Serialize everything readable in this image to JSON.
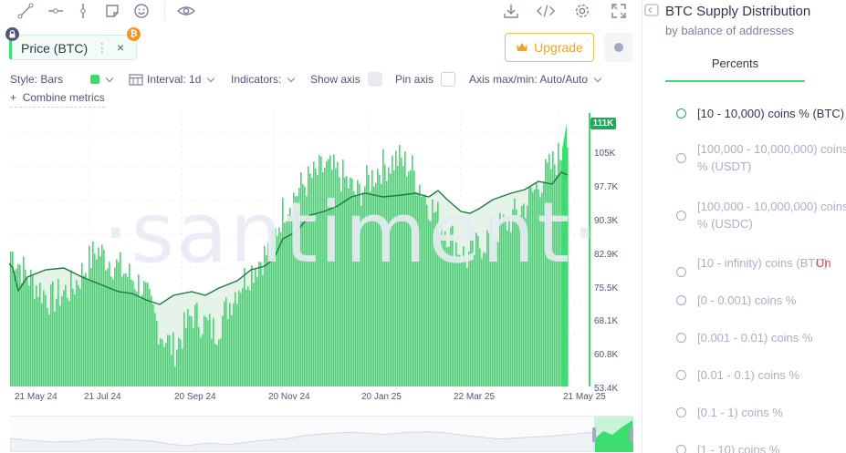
{
  "toolbar": {
    "icons": [
      "line-tool-icon",
      "ray-tool-icon",
      "vertical-line-icon",
      "note-icon",
      "emoji-icon",
      "eye-icon",
      "download-icon",
      "embed-code-icon",
      "settings-gear-icon",
      "fullscreen-icon"
    ]
  },
  "metric": {
    "label": "Price (BTC)",
    "menu": "⋮",
    "close": "×",
    "badge": "₿",
    "color": "#3bdd6e"
  },
  "upgrade": {
    "label": "Upgrade",
    "color": "#f0a424"
  },
  "settings": {
    "style": "Style: Bars",
    "interval": "Interval: 1d",
    "indicators": "Indicators:",
    "show_axis": "Show axis",
    "pin_axis": "Pin axis",
    "axis_minmax": "Axis max/min: Auto/Auto",
    "combine": "Combine metrics",
    "combine_plus": "+"
  },
  "chart_data": {
    "type": "bar",
    "watermark": "·santiment·",
    "y_ticks": [
      "111K",
      "105K",
      "97.7K",
      "90.3K",
      "82.9K",
      "75.5K",
      "68.1K",
      "60.8K",
      "53.4K"
    ],
    "x_ticks": [
      "21 May 24",
      "21 Jul 24",
      "20 Sep 24",
      "20 Nov 24",
      "20 Jan 25",
      "22 Mar 25",
      "21 May 25"
    ],
    "current_price_label": "111K",
    "series": [
      {
        "name": "Price (BTC)",
        "type": "bar",
        "color": "#3bdd6e"
      },
      {
        "name": "[10 - 10,000) coins % (BTC)",
        "type": "line",
        "color": "#1e7a3f"
      }
    ]
  },
  "sidebar": {
    "title": "BTC Supply Distribution",
    "subtitle": "by balance of addresses",
    "tab": "Percents",
    "items": [
      {
        "text": "[10 - 10,000) coins % (BTC)",
        "active": true
      },
      {
        "text": "[100,000 - 10,000,000) coins % (USDT)",
        "active": false
      },
      {
        "text": "[100,000 - 10,000,000) coins % (USDC)",
        "active": false
      },
      {
        "text": "[10 - infinity) coins (BTC)",
        "suffix": "Un",
        "active": false
      },
      {
        "text": "[0 - 0.001) coins %",
        "active": false
      },
      {
        "text": "[0.001 - 0.01) coins %",
        "active": false
      },
      {
        "text": "[0.01 - 0.1) coins %",
        "active": false
      },
      {
        "text": "[0.1 - 1) coins %",
        "active": false
      },
      {
        "text": "[1 - 10) coins %",
        "active": false
      }
    ]
  }
}
